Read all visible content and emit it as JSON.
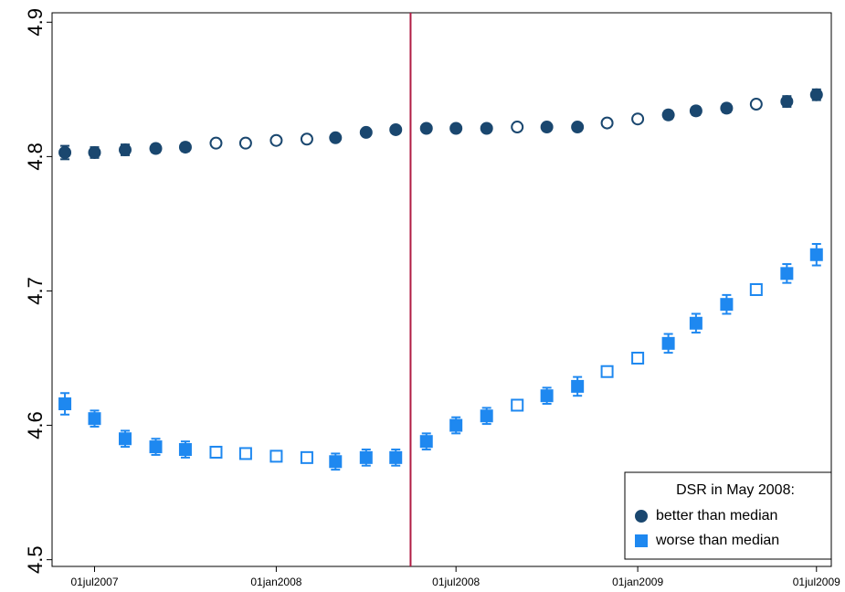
{
  "chart_data": {
    "type": "scatter",
    "x": [
      "2007-06-01",
      "2007-07-01",
      "2007-08-01",
      "2007-09-01",
      "2007-10-01",
      "2007-11-01",
      "2007-12-01",
      "2008-01-01",
      "2008-02-01",
      "2008-03-01",
      "2008-04-01",
      "2008-05-01",
      "2008-06-01",
      "2008-07-01",
      "2008-08-01",
      "2008-09-01",
      "2008-10-01",
      "2008-11-01",
      "2008-12-01",
      "2009-01-01",
      "2009-02-01",
      "2009-03-01",
      "2009-04-01",
      "2009-05-01",
      "2009-06-01",
      "2009-07-01"
    ],
    "series": [
      {
        "name": "better than median",
        "color": "#1a476f",
        "marker": "circle",
        "values": [
          4.803,
          4.803,
          4.805,
          4.806,
          4.807,
          4.81,
          4.81,
          4.812,
          4.813,
          4.814,
          4.818,
          4.82,
          4.821,
          4.821,
          4.821,
          4.822,
          4.822,
          4.822,
          4.825,
          4.828,
          4.831,
          4.834,
          4.836,
          4.839,
          4.841,
          4.846
        ],
        "errors": [
          0.005,
          0.004,
          0.004,
          0.003,
          0.003,
          null,
          null,
          null,
          null,
          0.002,
          0.002,
          0.002,
          0.002,
          0.002,
          0.002,
          null,
          0.002,
          0.002,
          null,
          null,
          0.003,
          0.003,
          0.003,
          null,
          0.004,
          0.004
        ],
        "filled": [
          true,
          true,
          true,
          true,
          true,
          false,
          false,
          false,
          false,
          true,
          true,
          true,
          true,
          true,
          true,
          false,
          true,
          true,
          false,
          false,
          true,
          true,
          true,
          false,
          true,
          true
        ]
      },
      {
        "name": "worse than median",
        "color": "#1e88f0",
        "marker": "square",
        "values": [
          4.616,
          4.605,
          4.59,
          4.584,
          4.582,
          4.58,
          4.579,
          4.577,
          4.576,
          4.573,
          4.576,
          4.576,
          4.588,
          4.6,
          4.607,
          4.615,
          4.622,
          4.629,
          4.64,
          4.65,
          4.661,
          4.676,
          4.69,
          4.701,
          4.713,
          4.727
        ],
        "errors": [
          0.008,
          0.006,
          0.006,
          0.006,
          0.006,
          null,
          null,
          null,
          null,
          0.006,
          0.006,
          0.006,
          0.006,
          0.006,
          0.006,
          null,
          0.006,
          0.007,
          null,
          null,
          0.007,
          0.007,
          0.007,
          null,
          0.007,
          0.008
        ],
        "filled": [
          true,
          true,
          true,
          true,
          true,
          false,
          false,
          false,
          false,
          true,
          true,
          true,
          true,
          true,
          true,
          false,
          true,
          true,
          false,
          false,
          true,
          true,
          true,
          false,
          true,
          true
        ]
      }
    ],
    "xlim": [
      "2007-05-19",
      "2009-07-16"
    ],
    "xticks": [
      {
        "value": "2007-07-01",
        "label": "01jul2007"
      },
      {
        "value": "2008-01-01",
        "label": "01jan2008"
      },
      {
        "value": "2008-07-01",
        "label": "01jul2008"
      },
      {
        "value": "2009-01-01",
        "label": "01jan2009"
      },
      {
        "value": "2009-07-01",
        "label": "01jul2009"
      }
    ],
    "ylim": [
      4.495,
      4.907
    ],
    "yticks": [
      4.5,
      4.6,
      4.7,
      4.8,
      4.9
    ],
    "vline": {
      "x": "2008-05-16",
      "color": "#b01c44"
    },
    "legend": {
      "title": "DSR in May 2008:",
      "position": "lower right"
    },
    "grid": false
  }
}
